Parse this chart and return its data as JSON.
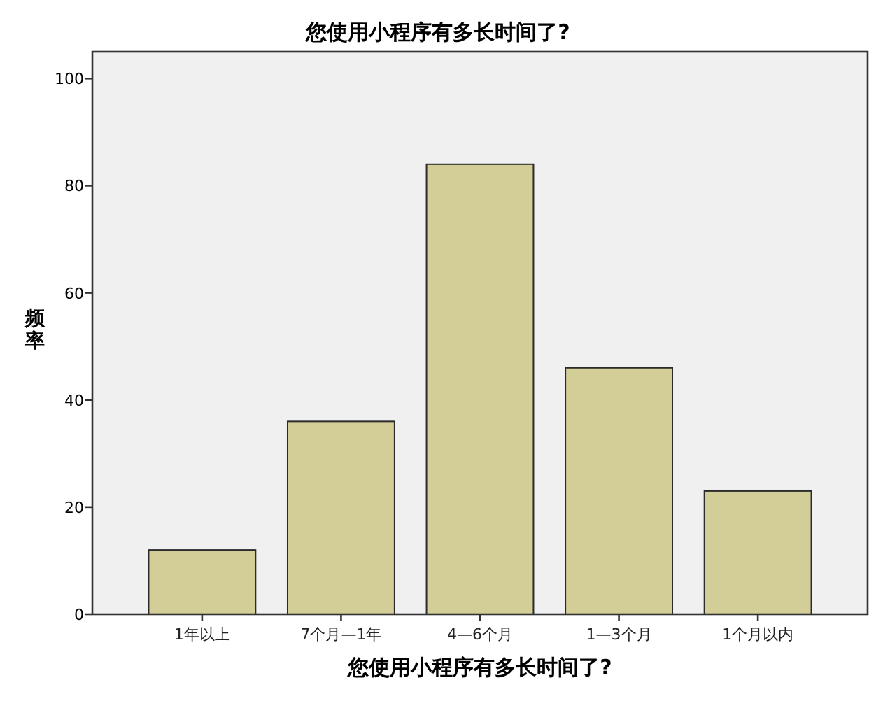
{
  "chart_data": {
    "type": "bar",
    "title": "您使用小程序有多长时间了?",
    "xlabel": "您使用小程序有多长时间了?",
    "ylabel": "频率",
    "categories": [
      "1年以上",
      "7个月—1年",
      "4—6个月",
      "1—3个月",
      "1个月以内"
    ],
    "values": [
      12,
      36,
      84,
      46,
      23
    ],
    "color": "#d3ce97",
    "ylim": [
      0,
      105
    ],
    "yticks": [
      0,
      20,
      40,
      60,
      80,
      100
    ]
  }
}
